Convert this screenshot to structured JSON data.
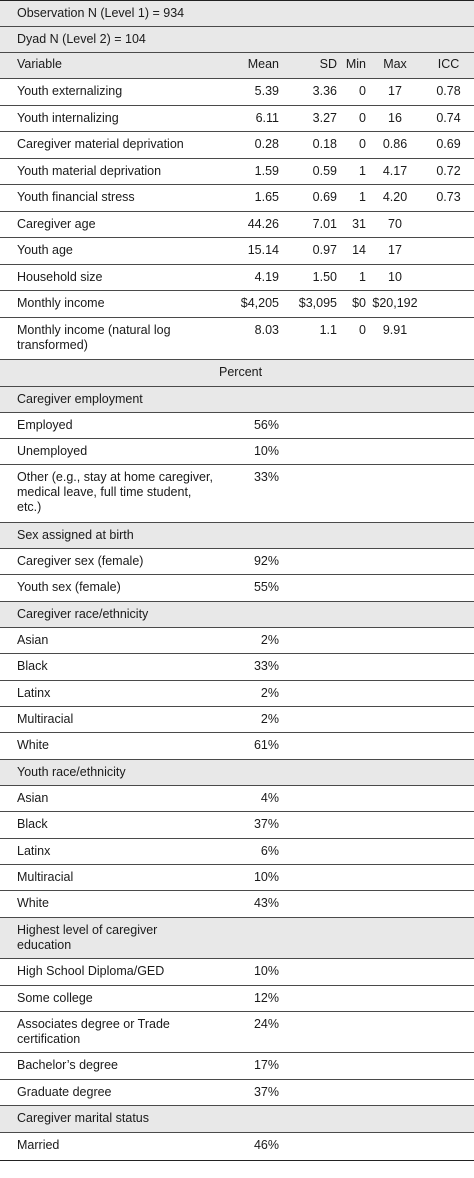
{
  "meta_rows": [
    "Observation N (Level 1) = 934",
    "Dyad N (Level 2) = 104"
  ],
  "headers": {
    "variable": "Variable",
    "mean": "Mean",
    "sd": "SD",
    "min": "Min",
    "max": "Max",
    "icc": "ICC"
  },
  "continuous_rows": [
    {
      "variable": "Youth externalizing",
      "mean": "5.39",
      "sd": "3.36",
      "min": "0",
      "max": "17",
      "icc": "0.78"
    },
    {
      "variable": "Youth internalizing",
      "mean": "6.11",
      "sd": "3.27",
      "min": "0",
      "max": "16",
      "icc": "0.74"
    },
    {
      "variable": "Caregiver material deprivation",
      "mean": "0.28",
      "sd": "0.18",
      "min": "0",
      "max": "0.86",
      "icc": "0.69"
    },
    {
      "variable": "Youth material deprivation",
      "mean": "1.59",
      "sd": "0.59",
      "min": "1",
      "max": "4.17",
      "icc": "0.72"
    },
    {
      "variable": "Youth financial stress",
      "mean": "1.65",
      "sd": "0.69",
      "min": "1",
      "max": "4.20",
      "icc": "0.73"
    },
    {
      "variable": "Caregiver age",
      "mean": "44.26",
      "sd": "7.01",
      "min": "31",
      "max": "70",
      "icc": ""
    },
    {
      "variable": "Youth age",
      "mean": "15.14",
      "sd": "0.97",
      "min": "14",
      "max": "17",
      "icc": ""
    },
    {
      "variable": "Household size",
      "mean": "4.19",
      "sd": "1.50",
      "min": "1",
      "max": "10",
      "icc": ""
    },
    {
      "variable": "Monthly income",
      "mean": "$4,205",
      "sd": "$3,095",
      "min": "$0",
      "max": "$20,192",
      "icc": ""
    },
    {
      "variable": "Monthly income (natural log transformed)",
      "mean": "8.03",
      "sd": "1.1",
      "min": "0",
      "max": "9.91",
      "icc": ""
    }
  ],
  "percent_label": "Percent",
  "categorical_rows": [
    {
      "label": "Caregiver employment",
      "value": ""
    },
    {
      "label": "Employed",
      "value": "56%"
    },
    {
      "label": "Unemployed",
      "value": "10%"
    },
    {
      "label": "Other (e.g., stay at home caregiver, medical leave, full time student, etc.)",
      "value": "33%"
    },
    {
      "label": "Sex assigned at birth",
      "value": ""
    },
    {
      "label": "Caregiver sex (female)",
      "value": "92%"
    },
    {
      "label": "Youth sex (female)",
      "value": "55%"
    },
    {
      "label": "Caregiver race/ethnicity",
      "value": ""
    },
    {
      "label": "Asian",
      "value": "2%"
    },
    {
      "label": "Black",
      "value": "33%"
    },
    {
      "label": "Latinx",
      "value": "2%"
    },
    {
      "label": "Multiracial",
      "value": "2%"
    },
    {
      "label": "White",
      "value": "61%"
    },
    {
      "label": "Youth race/ethnicity",
      "value": ""
    },
    {
      "label": "Asian",
      "value": "4%"
    },
    {
      "label": "Black",
      "value": "37%"
    },
    {
      "label": "Latinx",
      "value": "6%"
    },
    {
      "label": "Multiracial",
      "value": "10%"
    },
    {
      "label": "White",
      "value": "43%"
    },
    {
      "label": "Highest level of caregiver education",
      "value": ""
    },
    {
      "label": "High School Diploma/GED",
      "value": "10%"
    },
    {
      "label": "Some college",
      "value": "12%"
    },
    {
      "label": "Associates degree or Trade certification",
      "value": "24%"
    },
    {
      "label": "Bachelor’s degree",
      "value": "17%"
    },
    {
      "label": "Graduate degree",
      "value": "37%"
    },
    {
      "label": "Caregiver marital status",
      "value": ""
    },
    {
      "label": "Married",
      "value": "46%"
    }
  ]
}
